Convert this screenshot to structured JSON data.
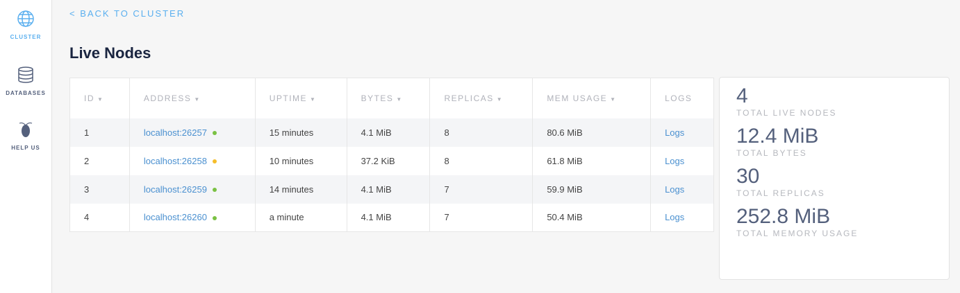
{
  "sidebar": {
    "items": [
      {
        "label": "CLUSTER",
        "icon": "globe-icon",
        "active": true
      },
      {
        "label": "DATABASES",
        "icon": "database-icon"
      },
      {
        "label": "HELP US",
        "icon": "cockroach-icon"
      }
    ]
  },
  "back_link": "< BACK TO CLUSTER",
  "page_title": "Live Nodes",
  "table": {
    "headers": [
      "ID",
      "ADDRESS",
      "UPTIME",
      "BYTES",
      "REPLICAS",
      "MEM USAGE",
      "LOGS"
    ],
    "sort_arrow": "▼",
    "rows": [
      {
        "id": "1",
        "address": "localhost:26257",
        "status": "#7ac143",
        "uptime": "15 minutes",
        "bytes": "4.1 MiB",
        "replicas": "8",
        "mem": "80.6 MiB",
        "logs": "Logs"
      },
      {
        "id": "2",
        "address": "localhost:26258",
        "status": "#f5bd2a",
        "uptime": "10 minutes",
        "bytes": "37.2 KiB",
        "replicas": "8",
        "mem": "61.8 MiB",
        "logs": "Logs"
      },
      {
        "id": "3",
        "address": "localhost:26259",
        "status": "#7ac143",
        "uptime": "14 minutes",
        "bytes": "4.1 MiB",
        "replicas": "7",
        "mem": "59.9 MiB",
        "logs": "Logs"
      },
      {
        "id": "4",
        "address": "localhost:26260",
        "status": "#7ac143",
        "uptime": "a minute",
        "bytes": "4.1 MiB",
        "replicas": "7",
        "mem": "50.4 MiB",
        "logs": "Logs"
      }
    ]
  },
  "stats": [
    {
      "value": "4",
      "label": "TOTAL LIVE NODES"
    },
    {
      "value": "12.4 MiB",
      "label": "TOTAL BYTES"
    },
    {
      "value": "30",
      "label": "TOTAL REPLICAS"
    },
    {
      "value": "252.8 MiB",
      "label": "TOTAL MEMORY USAGE"
    }
  ]
}
